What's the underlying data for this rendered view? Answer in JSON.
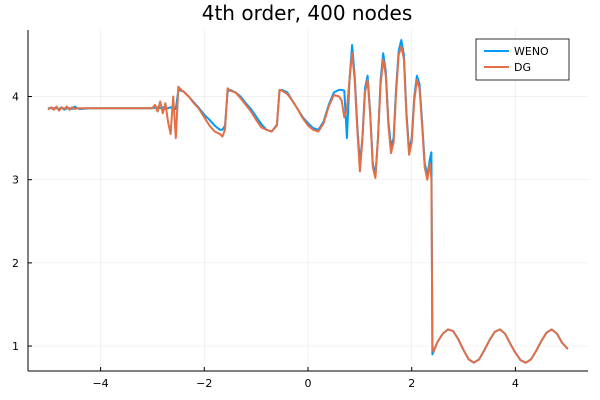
{
  "chart_data": {
    "type": "line",
    "title": "4th order, 400 nodes",
    "xlabel": "",
    "ylabel": "",
    "xlim": [
      -5.4,
      5.4
    ],
    "ylim": [
      0.7,
      4.8
    ],
    "xticks": [
      -4,
      -2,
      0,
      2,
      4
    ],
    "yticks": [
      1,
      2,
      3,
      4
    ],
    "xtick_labels": [
      "−4",
      "−2",
      "0",
      "2",
      "4"
    ],
    "ytick_labels": [
      "1",
      "2",
      "3",
      "4"
    ],
    "grid": true,
    "legend_position": "top-right",
    "series": [
      {
        "name": "WENO",
        "color": "#009AFA",
        "x": [
          -5.0,
          -4.85,
          -4.8,
          -4.75,
          -4.7,
          -4.65,
          -4.6,
          -4.55,
          -4.5,
          -4.45,
          -4.4,
          -4.2,
          -4.0,
          -3.8,
          -3.6,
          -3.4,
          -3.2,
          -3.0,
          -2.9,
          -2.85,
          -2.8,
          -2.75,
          -2.7,
          -2.65,
          -2.6,
          -2.55,
          -2.5,
          -2.45,
          -2.4,
          -2.3,
          -2.2,
          -2.1,
          -2.0,
          -1.9,
          -1.8,
          -1.7,
          -1.65,
          -1.6,
          -1.55,
          -1.5,
          -1.4,
          -1.3,
          -1.2,
          -1.1,
          -1.0,
          -0.9,
          -0.8,
          -0.7,
          -0.6,
          -0.55,
          -0.5,
          -0.4,
          -0.3,
          -0.2,
          -0.1,
          0.0,
          0.1,
          0.2,
          0.3,
          0.4,
          0.5,
          0.6,
          0.65,
          0.7,
          0.75,
          0.8,
          0.85,
          0.9,
          0.95,
          1.0,
          1.05,
          1.1,
          1.15,
          1.2,
          1.25,
          1.3,
          1.35,
          1.4,
          1.45,
          1.5,
          1.55,
          1.6,
          1.65,
          1.7,
          1.75,
          1.8,
          1.85,
          1.9,
          1.95,
          2.0,
          2.05,
          2.1,
          2.15,
          2.2,
          2.25,
          2.3,
          2.35,
          2.38,
          2.4,
          2.42,
          2.45,
          2.5,
          2.6,
          2.7,
          2.8,
          2.9,
          3.0,
          3.1,
          3.2,
          3.3,
          3.4,
          3.5,
          3.6,
          3.7,
          3.8,
          3.9,
          4.0,
          4.1,
          4.2,
          4.3,
          4.4,
          4.5,
          4.6,
          4.7,
          4.8,
          4.9,
          5.0
        ],
        "y": [
          3.86,
          3.86,
          3.85,
          3.87,
          3.84,
          3.86,
          3.86,
          3.85,
          3.88,
          3.86,
          3.85,
          3.86,
          3.86,
          3.86,
          3.86,
          3.86,
          3.86,
          3.86,
          3.87,
          3.86,
          3.87,
          3.85,
          3.86,
          3.87,
          3.85,
          3.85,
          4.08,
          4.07,
          4.06,
          4.0,
          3.93,
          3.86,
          3.78,
          3.72,
          3.65,
          3.6,
          3.6,
          3.65,
          4.06,
          4.08,
          4.05,
          4.0,
          3.92,
          3.85,
          3.76,
          3.67,
          3.6,
          3.58,
          3.66,
          4.07,
          4.08,
          4.05,
          3.95,
          3.85,
          3.75,
          3.68,
          3.62,
          3.6,
          3.7,
          3.9,
          4.05,
          4.08,
          4.08,
          4.07,
          3.5,
          4.2,
          4.62,
          4.25,
          3.65,
          3.2,
          3.5,
          4.1,
          4.25,
          3.8,
          3.2,
          3.05,
          3.5,
          4.2,
          4.52,
          4.3,
          3.7,
          3.4,
          3.5,
          4.1,
          4.55,
          4.68,
          4.5,
          3.8,
          3.35,
          3.5,
          4.0,
          4.25,
          4.15,
          3.7,
          3.2,
          3.05,
          3.25,
          3.33,
          0.9,
          0.93,
          0.98,
          1.05,
          1.15,
          1.2,
          1.18,
          1.08,
          0.95,
          0.84,
          0.8,
          0.84,
          0.95,
          1.07,
          1.17,
          1.2,
          1.15,
          1.03,
          0.92,
          0.83,
          0.8,
          0.84,
          0.94,
          1.06,
          1.16,
          1.2,
          1.15,
          1.04,
          0.97
        ]
      },
      {
        "name": "DG",
        "color": "#E26F46",
        "x": [
          -5.0,
          -4.95,
          -4.9,
          -4.85,
          -4.8,
          -4.75,
          -4.7,
          -4.65,
          -4.6,
          -4.55,
          -4.5,
          -4.45,
          -4.4,
          -4.2,
          -4.0,
          -3.8,
          -3.6,
          -3.4,
          -3.2,
          -3.0,
          -2.95,
          -2.9,
          -2.85,
          -2.8,
          -2.75,
          -2.7,
          -2.65,
          -2.6,
          -2.55,
          -2.5,
          -2.45,
          -2.4,
          -2.3,
          -2.2,
          -2.1,
          -2.0,
          -1.9,
          -1.8,
          -1.7,
          -1.65,
          -1.6,
          -1.55,
          -1.5,
          -1.4,
          -1.3,
          -1.2,
          -1.1,
          -1.0,
          -0.9,
          -0.8,
          -0.7,
          -0.6,
          -0.55,
          -0.5,
          -0.4,
          -0.3,
          -0.2,
          -0.1,
          0.0,
          0.1,
          0.2,
          0.3,
          0.4,
          0.5,
          0.6,
          0.65,
          0.7,
          0.75,
          0.8,
          0.85,
          0.9,
          0.95,
          1.0,
          1.05,
          1.1,
          1.15,
          1.2,
          1.25,
          1.3,
          1.35,
          1.4,
          1.45,
          1.5,
          1.55,
          1.6,
          1.65,
          1.7,
          1.75,
          1.8,
          1.85,
          1.9,
          1.95,
          2.0,
          2.05,
          2.1,
          2.15,
          2.2,
          2.25,
          2.3,
          2.35,
          2.38,
          2.4,
          2.42,
          2.45,
          2.5,
          2.6,
          2.7,
          2.8,
          2.9,
          3.0,
          3.1,
          3.2,
          3.3,
          3.4,
          3.5,
          3.6,
          3.7,
          3.8,
          3.9,
          4.0,
          4.1,
          4.2,
          4.3,
          4.4,
          4.5,
          4.6,
          4.7,
          4.8,
          4.9,
          5.0
        ],
        "y": [
          3.85,
          3.87,
          3.84,
          3.88,
          3.83,
          3.87,
          3.85,
          3.88,
          3.84,
          3.87,
          3.85,
          3.86,
          3.86,
          3.86,
          3.86,
          3.86,
          3.86,
          3.86,
          3.86,
          3.86,
          3.9,
          3.82,
          3.94,
          3.8,
          3.92,
          3.7,
          3.55,
          4.0,
          3.5,
          4.12,
          4.08,
          4.06,
          4.0,
          3.92,
          3.85,
          3.75,
          3.65,
          3.58,
          3.55,
          3.52,
          3.6,
          4.1,
          4.07,
          4.05,
          3.98,
          3.9,
          3.82,
          3.72,
          3.63,
          3.6,
          3.58,
          3.65,
          4.08,
          4.07,
          4.03,
          3.95,
          3.85,
          3.74,
          3.65,
          3.6,
          3.58,
          3.68,
          3.88,
          4.02,
          4.0,
          3.95,
          3.75,
          3.85,
          4.2,
          4.52,
          4.2,
          3.6,
          3.1,
          3.48,
          4.05,
          4.2,
          3.78,
          3.15,
          3.02,
          3.5,
          4.15,
          4.45,
          4.25,
          3.65,
          3.32,
          3.45,
          4.05,
          4.5,
          4.6,
          4.45,
          3.75,
          3.3,
          3.45,
          3.95,
          4.2,
          4.1,
          3.65,
          3.15,
          3.0,
          3.2,
          3.0,
          1.0,
          0.93,
          0.98,
          1.05,
          1.15,
          1.2,
          1.18,
          1.08,
          0.95,
          0.84,
          0.8,
          0.84,
          0.95,
          1.07,
          1.17,
          1.2,
          1.15,
          1.03,
          0.92,
          0.83,
          0.8,
          0.84,
          0.94,
          1.06,
          1.16,
          1.2,
          1.15,
          1.04,
          0.97
        ]
      }
    ]
  }
}
